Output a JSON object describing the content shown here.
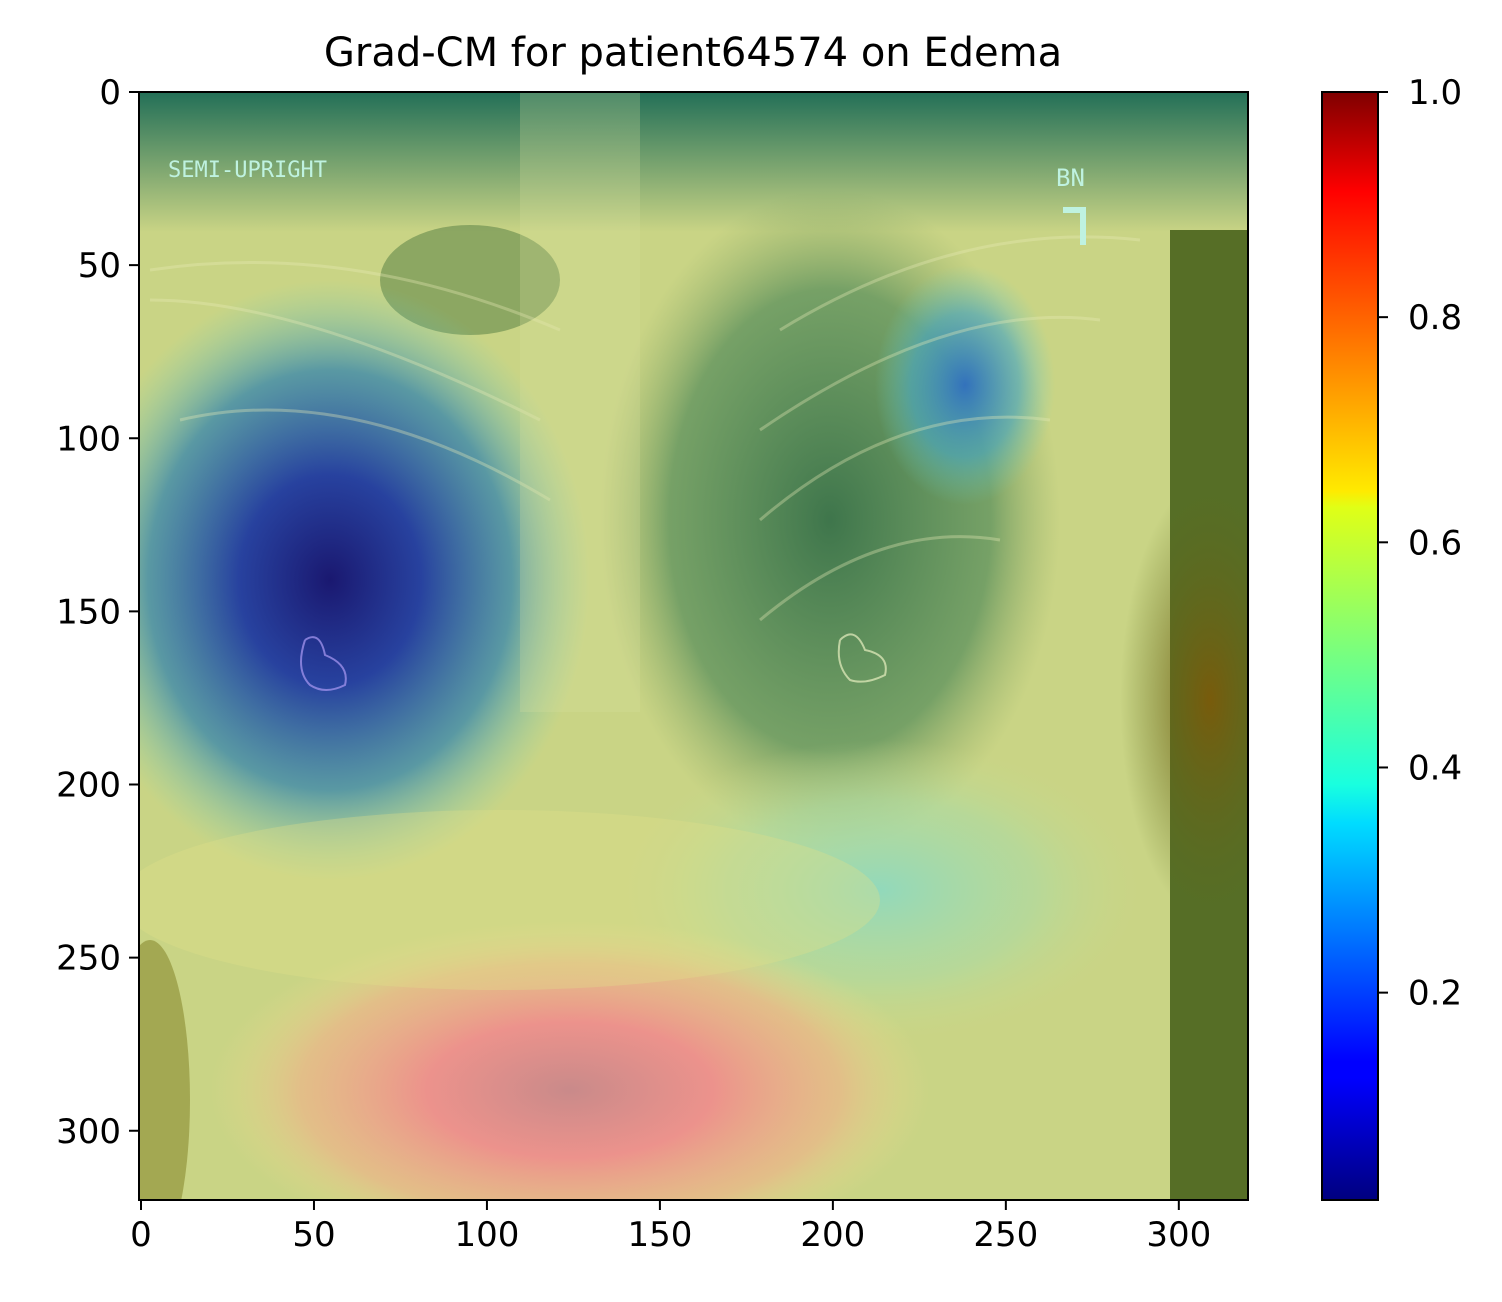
{
  "chart_data": {
    "type": "heatmap",
    "title": "Grad-CM for patient64574 on Edema",
    "image": {
      "kind": "chest-xray-with-gradcam-overlay",
      "text_overlays": [
        "SEMI-UPRIGHT",
        "BN"
      ],
      "xlim": [
        0,
        320
      ],
      "ylim": [
        320,
        0
      ]
    },
    "xaxis": {
      "ticks": [
        0,
        50,
        100,
        150,
        200,
        250,
        300
      ],
      "tick_labels": [
        "0",
        "50",
        "100",
        "150",
        "200",
        "250",
        "300"
      ]
    },
    "yaxis": {
      "ticks": [
        0,
        50,
        100,
        150,
        200,
        250,
        300
      ],
      "tick_labels": [
        "0",
        "50",
        "100",
        "150",
        "200",
        "250",
        "300"
      ],
      "inverted": true
    },
    "colorbar": {
      "colormap": "jet",
      "range": [
        0.0,
        1.0
      ],
      "ticks": [
        0.2,
        0.4,
        0.6,
        0.8,
        1.0
      ],
      "tick_labels": [
        "0.2",
        "0.4",
        "0.6",
        "0.8",
        "1.0"
      ]
    },
    "activation_regions": [
      {
        "label": "right-lung-low",
        "cx": 50,
        "cy": 140,
        "value": 0.05
      },
      {
        "label": "left-upper-low",
        "cx": 240,
        "cy": 85,
        "value": 0.25
      },
      {
        "label": "lower-right-mid",
        "cx": 240,
        "cy": 240,
        "value": 0.45
      },
      {
        "label": "lower-abdomen-high",
        "cx": 125,
        "cy": 285,
        "value": 0.85
      },
      {
        "label": "right-edge-high",
        "cx": 310,
        "cy": 180,
        "value": 0.75
      },
      {
        "label": "top-edge-mid",
        "cx": 240,
        "cy": 15,
        "value": 0.45
      }
    ],
    "grid": false,
    "legend": "none"
  }
}
